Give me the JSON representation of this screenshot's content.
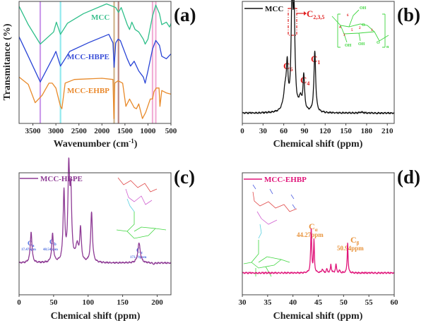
{
  "colors": {
    "mcc_ftir": "#2fbf8a",
    "hbpe_ftir": "#2a45d6",
    "ehbp_ftir": "#e88a2a",
    "mcc_nmr": "#111111",
    "hbpe_nmr": "#8e3b95",
    "ehbp_nmr": "#e0157a",
    "annot_red": "#e02020",
    "annot_blue": "#4f6fe0",
    "annot_orange": "#e8923a",
    "structure_green": "#3fd63f"
  },
  "chart_data": [
    {
      "panel_label": "(a)",
      "type": "line",
      "xlabel": "Wavenumber (cm",
      "xlabel_sup": "-1",
      "xlabel_end": ")",
      "ylabel": "Transmitance (%)",
      "xlim": [
        3800,
        500
      ],
      "ylim": [
        0,
        100
      ],
      "y_ticks_shown": false,
      "x_ticks": [
        "3500",
        "3000",
        "2500",
        "2000",
        "1500",
        "1000",
        "500"
      ],
      "grid": false,
      "vertical_markers": [
        {
          "x": 3340,
          "color": "#c48be8"
        },
        {
          "x": 2900,
          "color": "#7fe6ec"
        },
        {
          "x": 1735,
          "color": "#c8a878"
        },
        {
          "x": 1640,
          "color": "#b0706a"
        },
        {
          "x": 900,
          "color": "#f0a0d0"
        },
        {
          "x": 830,
          "color": "#f0a0d0"
        }
      ],
      "series": [
        {
          "name": "MCC",
          "color": "#2fbf8a",
          "points": [
            [
              3800,
              96
            ],
            [
              3600,
              81
            ],
            [
              3340,
              65
            ],
            [
              3050,
              75
            ],
            [
              2990,
              83
            ],
            [
              2900,
              73
            ],
            [
              2750,
              82
            ],
            [
              2400,
              90
            ],
            [
              1900,
              98
            ],
            [
              1700,
              95
            ],
            [
              1640,
              91
            ],
            [
              1580,
              95
            ],
            [
              1450,
              81
            ],
            [
              1400,
              77
            ],
            [
              1350,
              83
            ],
            [
              1280,
              77
            ],
            [
              1200,
              75
            ],
            [
              1100,
              69
            ],
            [
              1060,
              65
            ],
            [
              1000,
              69
            ],
            [
              900,
              88
            ],
            [
              830,
              97
            ],
            [
              750,
              90
            ],
            [
              700,
              81
            ],
            [
              600,
              83
            ],
            [
              530,
              79
            ],
            [
              500,
              82
            ]
          ]
        },
        {
          "name": "MCC-HBPE",
          "color": "#2a45d6",
          "points": [
            [
              3800,
              71
            ],
            [
              3600,
              55
            ],
            [
              3340,
              34
            ],
            [
              3050,
              55
            ],
            [
              3000,
              59
            ],
            [
              2900,
              47
            ],
            [
              2700,
              59
            ],
            [
              2300,
              66
            ],
            [
              1850,
              73
            ],
            [
              1760,
              66
            ],
            [
              1735,
              46
            ],
            [
              1700,
              66
            ],
            [
              1650,
              69
            ],
            [
              1600,
              68
            ],
            [
              1450,
              53
            ],
            [
              1380,
              47
            ],
            [
              1300,
              51
            ],
            [
              1200,
              43
            ],
            [
              1100,
              38
            ],
            [
              1060,
              33
            ],
            [
              1000,
              43
            ],
            [
              900,
              61
            ],
            [
              830,
              68
            ],
            [
              750,
              64
            ],
            [
              700,
              55
            ],
            [
              600,
              53
            ],
            [
              500,
              57
            ]
          ]
        },
        {
          "name": "MCC-EHBP",
          "color": "#e88a2a",
          "points": [
            [
              3800,
              38
            ],
            [
              3600,
              32
            ],
            [
              3450,
              17
            ],
            [
              3300,
              23
            ],
            [
              3150,
              33
            ],
            [
              3080,
              33
            ],
            [
              3000,
              29
            ],
            [
              2900,
              14
            ],
            [
              2870,
              12
            ],
            [
              2800,
              33
            ],
            [
              2600,
              36
            ],
            [
              2000,
              37
            ],
            [
              1760,
              36
            ],
            [
              1740,
              4
            ],
            [
              1720,
              33
            ],
            [
              1650,
              35
            ],
            [
              1550,
              33
            ],
            [
              1480,
              14
            ],
            [
              1400,
              20
            ],
            [
              1300,
              13
            ],
            [
              1250,
              12
            ],
            [
              1200,
              16
            ],
            [
              1120,
              4
            ],
            [
              1050,
              9
            ],
            [
              950,
              20
            ],
            [
              900,
              20
            ],
            [
              870,
              26
            ],
            [
              820,
              29
            ],
            [
              760,
              29
            ],
            [
              740,
              14
            ],
            [
              700,
              27
            ],
            [
              600,
              25
            ],
            [
              500,
              24
            ]
          ]
        }
      ]
    },
    {
      "panel_label": "(b)",
      "type": "line",
      "xlabel": "Chemical shift (ppm)",
      "xlim": [
        0,
        220
      ],
      "ylim": [
        -0.1,
        1.09
      ],
      "x_ticks": [
        "0",
        "30",
        "60",
        "90",
        "120",
        "150",
        "180",
        "210"
      ],
      "grid": false,
      "legend": "top-left",
      "series": [
        {
          "name": "MCC",
          "color": "#111111",
          "peaks": [
            [
              62,
              0.2,
              3
            ],
            [
              65,
              0.38,
              1.4
            ],
            [
              72,
              1.0,
              1.6
            ],
            [
              75,
              0.85,
              1.6
            ],
            [
              84,
              0.12,
              2.5
            ],
            [
              89,
              0.34,
              1.4
            ],
            [
              105,
              0.6,
              1.5
            ],
            [
              172,
              0.01,
              3
            ]
          ]
        }
      ],
      "annotations": [
        {
          "text": "C",
          "sub": "2,3,5",
          "x": 73
        },
        {
          "text": "C",
          "sub": "6",
          "x": 65
        },
        {
          "text": "C",
          "sub": "4",
          "x": 89
        },
        {
          "text": "C",
          "sub": "1",
          "x": 105
        }
      ],
      "structure_labels": {
        "oh_top": "OH",
        "oh_1": "OH",
        "oh_2": "OH",
        "o_ring": "O",
        "o_link": "O",
        "n": "n",
        "c1": "1",
        "c2": "2",
        "c3": "3",
        "c4": "4",
        "c5": "5",
        "c6": "6"
      }
    },
    {
      "panel_label": "(c)",
      "type": "line",
      "xlabel": "Chemical shift (ppm)",
      "xlim": [
        0,
        220
      ],
      "ylim": [
        -0.357,
        1.016
      ],
      "x_ticks": [
        "0",
        "50",
        "100",
        "150",
        "200"
      ],
      "grid": false,
      "legend": "top-left",
      "series": [
        {
          "name": "MCC-HBPE",
          "color": "#8e3b95",
          "peaks": [
            [
              17.47,
              0.35,
              1.5
            ],
            [
              48.54,
              0.32,
              1.5
            ],
            [
              65,
              0.78,
              1.4
            ],
            [
              72,
              1.0,
              1.5
            ],
            [
              75,
              0.7,
              1.5
            ],
            [
              84,
              0.18,
              2.5
            ],
            [
              89,
              0.36,
              1.4
            ],
            [
              105,
              0.57,
              1.5
            ],
            [
              173.79,
              0.22,
              2.2
            ],
            [
              195,
              -0.01,
              2
            ]
          ]
        }
      ],
      "annotations": [
        {
          "text": "C",
          "sub": "a",
          "value": "17.47ppm"
        },
        {
          "text": "C",
          "sub": "b",
          "value": "48.54ppm"
        },
        {
          "text": "C",
          "sub": "c",
          "value": "173.79ppm"
        }
      ]
    },
    {
      "panel_label": "(d)",
      "type": "line",
      "xlabel": "Chemical shift (ppm)",
      "xlim": [
        30,
        60
      ],
      "ylim": [
        -0.5,
        2.29
      ],
      "x_ticks": [
        "30",
        "35",
        "40",
        "45",
        "50",
        "55",
        "60"
      ],
      "grid": false,
      "legend": "top-left",
      "series": [
        {
          "name": "MCC-EHBP",
          "color": "#e0157a",
          "peaks": [
            [
              43.6,
              1.0,
              0.12
            ],
            [
              44.15,
              0.72,
              0.1
            ],
            [
              45.8,
              0.08,
              0.15
            ],
            [
              46.7,
              0.08,
              0.15
            ],
            [
              47.5,
              0.18,
              0.12
            ],
            [
              48.5,
              0.2,
              0.12
            ],
            [
              49.2,
              0.05,
              0.15
            ],
            [
              50.8,
              0.7,
              0.1
            ]
          ]
        }
      ],
      "annotations": [
        {
          "text": "C",
          "sub": "α",
          "value": "44.27ppm"
        },
        {
          "text": "C",
          "sub": "β",
          "value": "50.94ppm"
        }
      ]
    }
  ]
}
